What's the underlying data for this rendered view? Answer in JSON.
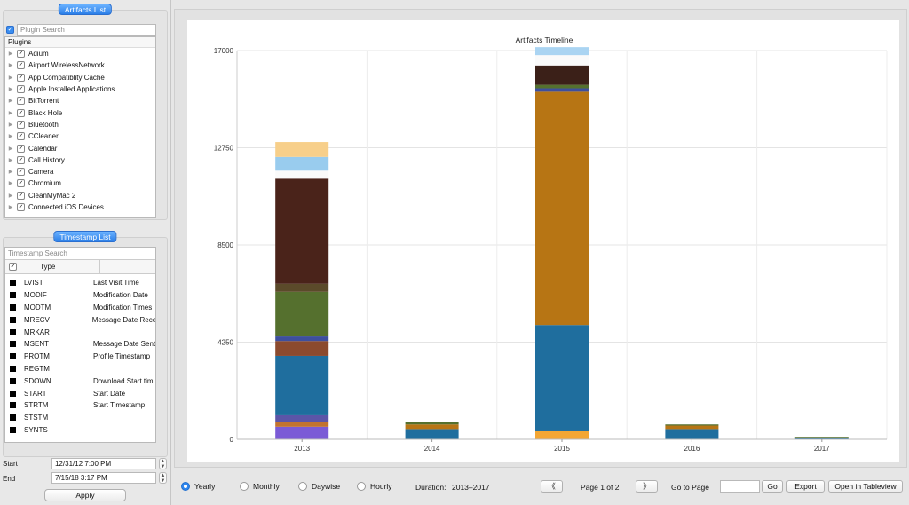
{
  "left_panel": {
    "artifacts_title": "Artifacts List",
    "plugin_search_placeholder": "Plugin Search",
    "plugins_header": "Plugins",
    "plugins": [
      {
        "name": "Adium",
        "checked": true
      },
      {
        "name": "Airport WirelessNetwork",
        "checked": true
      },
      {
        "name": "App Compatiblity Cache",
        "checked": true
      },
      {
        "name": "Apple Installed Applications",
        "checked": true
      },
      {
        "name": "BitTorrent",
        "checked": true
      },
      {
        "name": "Black Hole",
        "checked": true
      },
      {
        "name": "Bluetooth",
        "checked": true
      },
      {
        "name": "CCleaner",
        "checked": true
      },
      {
        "name": "Calendar",
        "checked": true
      },
      {
        "name": "Call History",
        "checked": true
      },
      {
        "name": "Camera",
        "checked": true
      },
      {
        "name": "Chromium",
        "checked": true
      },
      {
        "name": "CleanMyMac 2",
        "checked": true
      },
      {
        "name": "Connected iOS Devices",
        "checked": true
      }
    ],
    "timestamp_title": "Timestamp List",
    "timestamp_search_placeholder": "Timestamp Search",
    "type_header": "Type",
    "timestamps": [
      {
        "code": "LVIST",
        "desc": "Last Visit Time"
      },
      {
        "code": "MODIF",
        "desc": "Modification Date"
      },
      {
        "code": "MODTM",
        "desc": "Modification Times"
      },
      {
        "code": "MRECV",
        "desc": "Message Date Rece"
      },
      {
        "code": "MRKAR",
        "desc": ""
      },
      {
        "code": "MSENT",
        "desc": "Message Date Sent"
      },
      {
        "code": "PROTM",
        "desc": "Profile Timestamp"
      },
      {
        "code": "REGTM",
        "desc": ""
      },
      {
        "code": "SDOWN",
        "desc": "Download Start tim"
      },
      {
        "code": "START",
        "desc": "Start Date"
      },
      {
        "code": "STRTM",
        "desc": "Start Timestamp"
      },
      {
        "code": "STSTM",
        "desc": ""
      },
      {
        "code": "SYNTS",
        "desc": ""
      }
    ],
    "start_label": "Start",
    "start_value": "12/31/12 7:00 PM",
    "end_label": "End",
    "end_value": "7/15/18 3:17 PM",
    "apply_label": "Apply"
  },
  "chart_data": {
    "type": "bar",
    "stacked": true,
    "title": "Artifacts Timeline",
    "xlabel": "",
    "ylabel": "",
    "categories": [
      "2013",
      "2014",
      "2015",
      "2016",
      "2017"
    ],
    "ylim": [
      0,
      17000
    ],
    "yticks": [
      0,
      4250,
      8500,
      12750,
      17000
    ],
    "ytick_labels": [
      "0",
      "4250",
      "8500",
      "12750",
      "17000"
    ],
    "grid": true,
    "colors": [
      "#7b5bd6",
      "#c2732f",
      "#5c55a8",
      "#1f6e9e",
      "#8b4a2e",
      "#3e4f9e",
      "#55702e",
      "#5b4a2a",
      "#4a231a",
      "#fafafa",
      "#99ccee",
      "#f7cf8a",
      "#f3a634",
      "#b77514",
      "#3b2018",
      "#aad4f2"
    ],
    "bars": [
      {
        "category": "2013",
        "segments": [
          {
            "value": 550,
            "color": "#7b5bd6"
          },
          {
            "value": 200,
            "color": "#c2732f"
          },
          {
            "value": 300,
            "color": "#5c55a8"
          },
          {
            "value": 2600,
            "color": "#1f6e9e"
          },
          {
            "value": 650,
            "color": "#8b4a2e"
          },
          {
            "value": 200,
            "color": "#3e4f9e"
          },
          {
            "value": 1950,
            "color": "#55702e"
          },
          {
            "value": 350,
            "color": "#5b4a2a"
          },
          {
            "value": 4600,
            "color": "#4a231a"
          },
          {
            "value": 350,
            "color": "#fafafa"
          },
          {
            "value": 600,
            "color": "#99ccee"
          },
          {
            "value": 650,
            "color": "#f7cf8a"
          }
        ]
      },
      {
        "category": "2014",
        "segments": [
          {
            "value": 450,
            "color": "#1f6e9e"
          },
          {
            "value": 200,
            "color": "#b77514"
          },
          {
            "value": 100,
            "color": "#55702e"
          }
        ]
      },
      {
        "category": "2015",
        "segments": [
          {
            "value": 350,
            "color": "#f3a634"
          },
          {
            "value": 4650,
            "color": "#1f6e9e"
          },
          {
            "value": 10200,
            "color": "#b77514"
          },
          {
            "value": 150,
            "color": "#3e4f9e"
          },
          {
            "value": 150,
            "color": "#55702e"
          },
          {
            "value": 850,
            "color": "#3b2018"
          },
          {
            "value": 450,
            "color": "#fafafa"
          },
          {
            "value": 350,
            "color": "#aad4f2"
          }
        ]
      },
      {
        "category": "2016",
        "segments": [
          {
            "value": 450,
            "color": "#1f6e9e"
          },
          {
            "value": 150,
            "color": "#b77514"
          },
          {
            "value": 50,
            "color": "#55702e"
          }
        ]
      },
      {
        "category": "2017",
        "segments": [
          {
            "value": 80,
            "color": "#1f6e9e"
          },
          {
            "value": 30,
            "color": "#55702e"
          }
        ]
      }
    ]
  },
  "bottom_bar": {
    "radios": [
      {
        "label": "Yearly",
        "selected": true
      },
      {
        "label": "Monthly",
        "selected": false
      },
      {
        "label": "Daywise",
        "selected": false
      },
      {
        "label": "Hourly",
        "selected": false
      }
    ],
    "duration_label": "Duration:",
    "duration_value": "2013–2017",
    "prev_symbol": "《",
    "next_symbol": "》",
    "page_text": "Page 1 of 2",
    "goto_label": "Go to Page",
    "go_label": "Go",
    "export_label": "Export",
    "tableview_label": "Open in Tableview"
  }
}
